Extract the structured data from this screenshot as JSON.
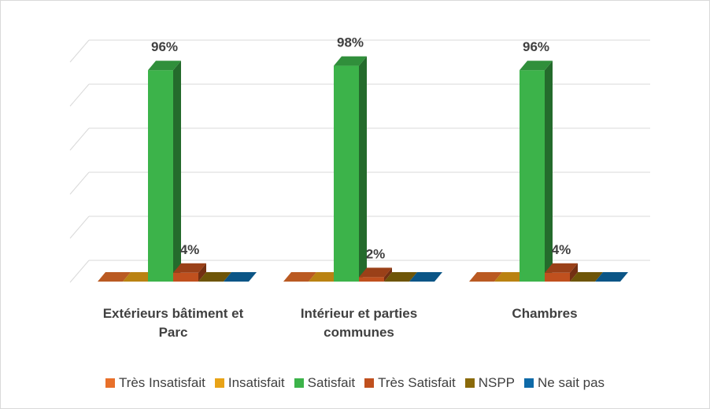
{
  "chart_data": {
    "type": "bar3d",
    "categories": [
      "Extérieurs bâtiment et Parc",
      "Intérieur et parties communes",
      "Chambres"
    ],
    "series": [
      {
        "name": "Très Insatisfait",
        "color": "#e8702a",
        "values": [
          0,
          0,
          0
        ]
      },
      {
        "name": "Insatisfait",
        "color": "#e8a317",
        "values": [
          0,
          0,
          0
        ]
      },
      {
        "name": "Satisfait",
        "color": "#3cb34a",
        "values": [
          96,
          98,
          96
        ],
        "value_labels": [
          "96%",
          "98%",
          "96%"
        ]
      },
      {
        "name": "Très Satisfait",
        "color": "#c0501e",
        "values": [
          4,
          2,
          4
        ],
        "value_labels": [
          "4%",
          "2%",
          "4%"
        ]
      },
      {
        "name": "NSPP",
        "color": "#8a6a0a",
        "values": [
          0,
          0,
          0
        ]
      },
      {
        "name": "Ne sait pas",
        "color": "#0e6aa8",
        "values": [
          0,
          0,
          0
        ]
      }
    ],
    "ylim": [
      0,
      100
    ],
    "yticks": [
      0,
      20,
      40,
      60,
      80,
      100
    ],
    "grid": true,
    "legend": "bottom"
  }
}
